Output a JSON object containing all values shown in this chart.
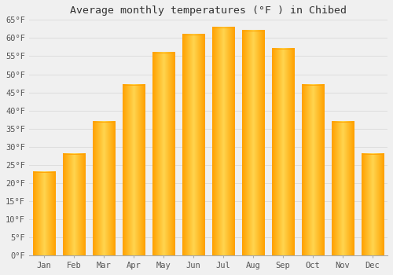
{
  "title": "Average monthly temperatures (°F ) in Chibed",
  "months": [
    "Jan",
    "Feb",
    "Mar",
    "Apr",
    "May",
    "Jun",
    "Jul",
    "Aug",
    "Sep",
    "Oct",
    "Nov",
    "Dec"
  ],
  "values": [
    23,
    28,
    37,
    47,
    56,
    61,
    63,
    62,
    57,
    47,
    37,
    28
  ],
  "bar_color_center": "#FFD54F",
  "bar_color_edge": "#FFA000",
  "background_color": "#F0F0F0",
  "grid_color": "#DDDDDD",
  "title_fontsize": 9.5,
  "tick_fontsize": 7.5,
  "ylim_min": 0,
  "ylim_max": 65,
  "yticks": [
    0,
    5,
    10,
    15,
    20,
    25,
    30,
    35,
    40,
    45,
    50,
    55,
    60,
    65
  ]
}
